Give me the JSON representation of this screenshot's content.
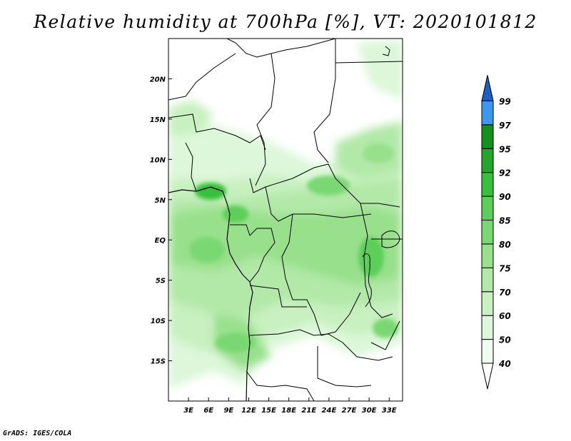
{
  "title": "Relative humidity at 700hPa [%], VT: 2020101812",
  "footer": "GrADS: IGES/COLA",
  "colors": {
    "levels": [
      "#ffffff",
      "#f0fcf0",
      "#dcf7d9",
      "#c8f0c0",
      "#b2e8a8",
      "#98e08c",
      "#7ad872",
      "#5ccf58",
      "#38bf3c",
      "#24a62b",
      "#14901e",
      "#3c97f0",
      "#1f78d8",
      "#1a5fc2"
    ],
    "border": "#000000"
  },
  "map": {
    "lon_range": [
      0,
      35
    ],
    "lat_range": [
      -20,
      25
    ],
    "x_ticks": [
      {
        "value": 3,
        "label": "3E"
      },
      {
        "value": 6,
        "label": "6E"
      },
      {
        "value": 9,
        "label": "9E"
      },
      {
        "value": 12,
        "label": "12E"
      },
      {
        "value": 15,
        "label": "15E"
      },
      {
        "value": 18,
        "label": "18E"
      },
      {
        "value": 21,
        "label": "21E"
      },
      {
        "value": 24,
        "label": "24E"
      },
      {
        "value": 27,
        "label": "27E"
      },
      {
        "value": 30,
        "label": "30E"
      },
      {
        "value": 33,
        "label": "33E"
      }
    ],
    "y_ticks": [
      {
        "value": 20,
        "label": "20N"
      },
      {
        "value": 15,
        "label": "15N"
      },
      {
        "value": 10,
        "label": "10N"
      },
      {
        "value": 5,
        "label": "5N"
      },
      {
        "value": 0,
        "label": "EQ"
      },
      {
        "value": -5,
        "label": "5S"
      },
      {
        "value": -10,
        "label": "10S"
      },
      {
        "value": -15,
        "label": "15S"
      }
    ]
  },
  "colorbar": {
    "labels": [
      "40",
      "50",
      "60",
      "70",
      "75",
      "80",
      "85",
      "90",
      "92",
      "95",
      "97",
      "99"
    ]
  }
}
